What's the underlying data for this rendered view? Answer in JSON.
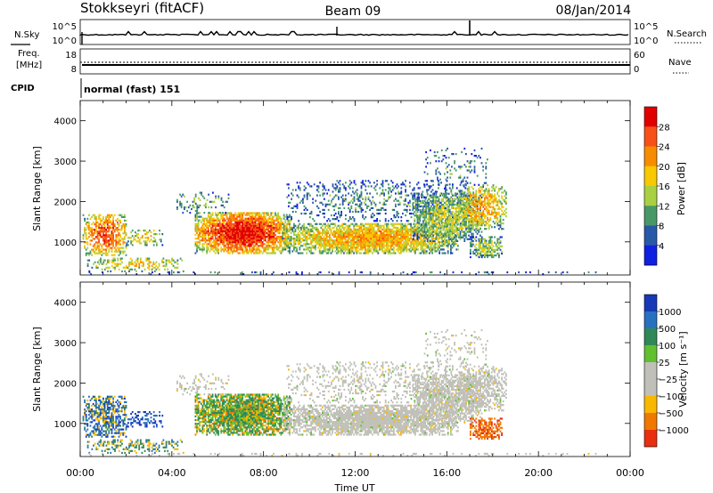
{
  "header": {
    "station": "Stokkseyri (fitACF)",
    "beam": "Beam 09",
    "date": "08/Jan/2014"
  },
  "status_panel": {
    "left_labels": {
      "nsky": "N.Sky",
      "freq": "Freq.",
      "mhz": "[MHz]",
      "cpid": "CPID"
    },
    "right_labels": {
      "nsearch": "N.Search",
      "nave": "Nave"
    },
    "nsky_ticks": [
      "10^5",
      "10^0"
    ],
    "nsearch_ticks": [
      "10^5",
      "10^0"
    ],
    "freq_ticks": [
      "18",
      "8"
    ],
    "nave_ticks": [
      "60",
      "0"
    ],
    "cpid_text": "normal (fast) 151"
  },
  "chart_data": [
    {
      "type": "heatmap",
      "name": "power",
      "ylabel": "Slant Range [km]",
      "colorbar_label": "Power [dB]",
      "colorbar_ticks": [
        "28",
        "24",
        "20",
        "16",
        "12",
        "8",
        "4"
      ],
      "colorbar_colors": [
        "#e00000",
        "#f85018",
        "#f88c00",
        "#f8c800",
        "#a8d040",
        "#489868",
        "#2858a8",
        "#1020e0"
      ],
      "y_ticks": [
        "4000",
        "3000",
        "2000",
        "1000"
      ],
      "ylim": [
        180,
        4500
      ]
    },
    {
      "type": "heatmap",
      "name": "velocity",
      "ylabel": "Slant Range [km]",
      "colorbar_label": "Velocity [m s⁻¹]",
      "colorbar_ticks": [
        "1000",
        "500",
        "100",
        "25",
        "−25",
        "−100",
        "−500",
        "−1000"
      ],
      "colorbar_colors": [
        "#1838b8",
        "#2870c0",
        "#308858",
        "#60c030",
        "#c0c0b8",
        "#c0c0b8",
        "#f8b800",
        "#f07800",
        "#e83010"
      ],
      "y_ticks": [
        "4000",
        "3000",
        "2000",
        "1000"
      ],
      "ylim": [
        180,
        4500
      ]
    }
  ],
  "x_axis": {
    "label": "Time UT",
    "ticks": [
      "00:00",
      "04:00",
      "08:00",
      "12:00",
      "16:00",
      "20:00",
      "00:00"
    ]
  }
}
